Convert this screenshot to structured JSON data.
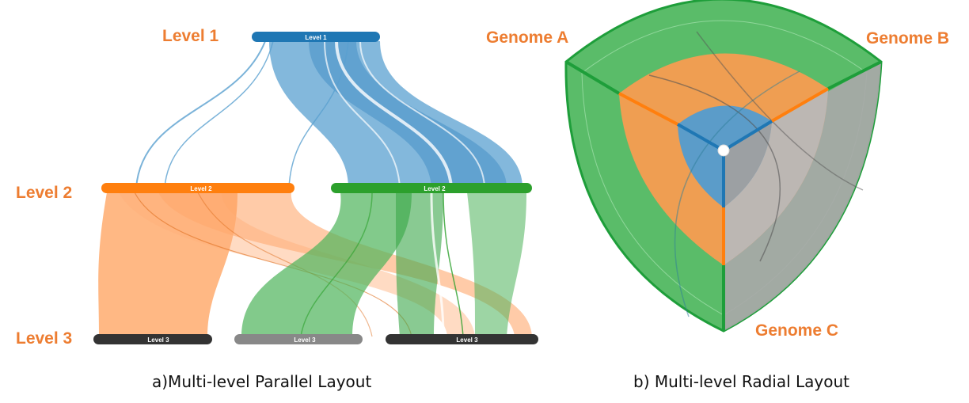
{
  "colors": {
    "label_orange": "#ED7D31",
    "level1_blue": "#1F77B4",
    "level2_orange": "#FF7F0E",
    "level2_green": "#2CA02C",
    "level3_dark": "#333333",
    "level3_gray": "#888888",
    "genome_c_gray": "#9E9E9E"
  },
  "parallel_layout": {
    "row_labels": {
      "level1": "Level 1",
      "level2": "Level 2",
      "level3": "Level 3"
    },
    "bars": {
      "level1": "Level 1",
      "level2_left": "Level 2",
      "level2_right": "Level 2",
      "level3_left": "Level 3",
      "level3_middle": "Level 3",
      "level3_right": "Level 3"
    },
    "caption": "a)Multi-level Parallel Layout"
  },
  "radial_layout": {
    "genome_labels": {
      "a": "Genome A",
      "b": "Genome B",
      "c": "Genome C"
    },
    "caption": "b) Multi-level Radial Layout"
  }
}
